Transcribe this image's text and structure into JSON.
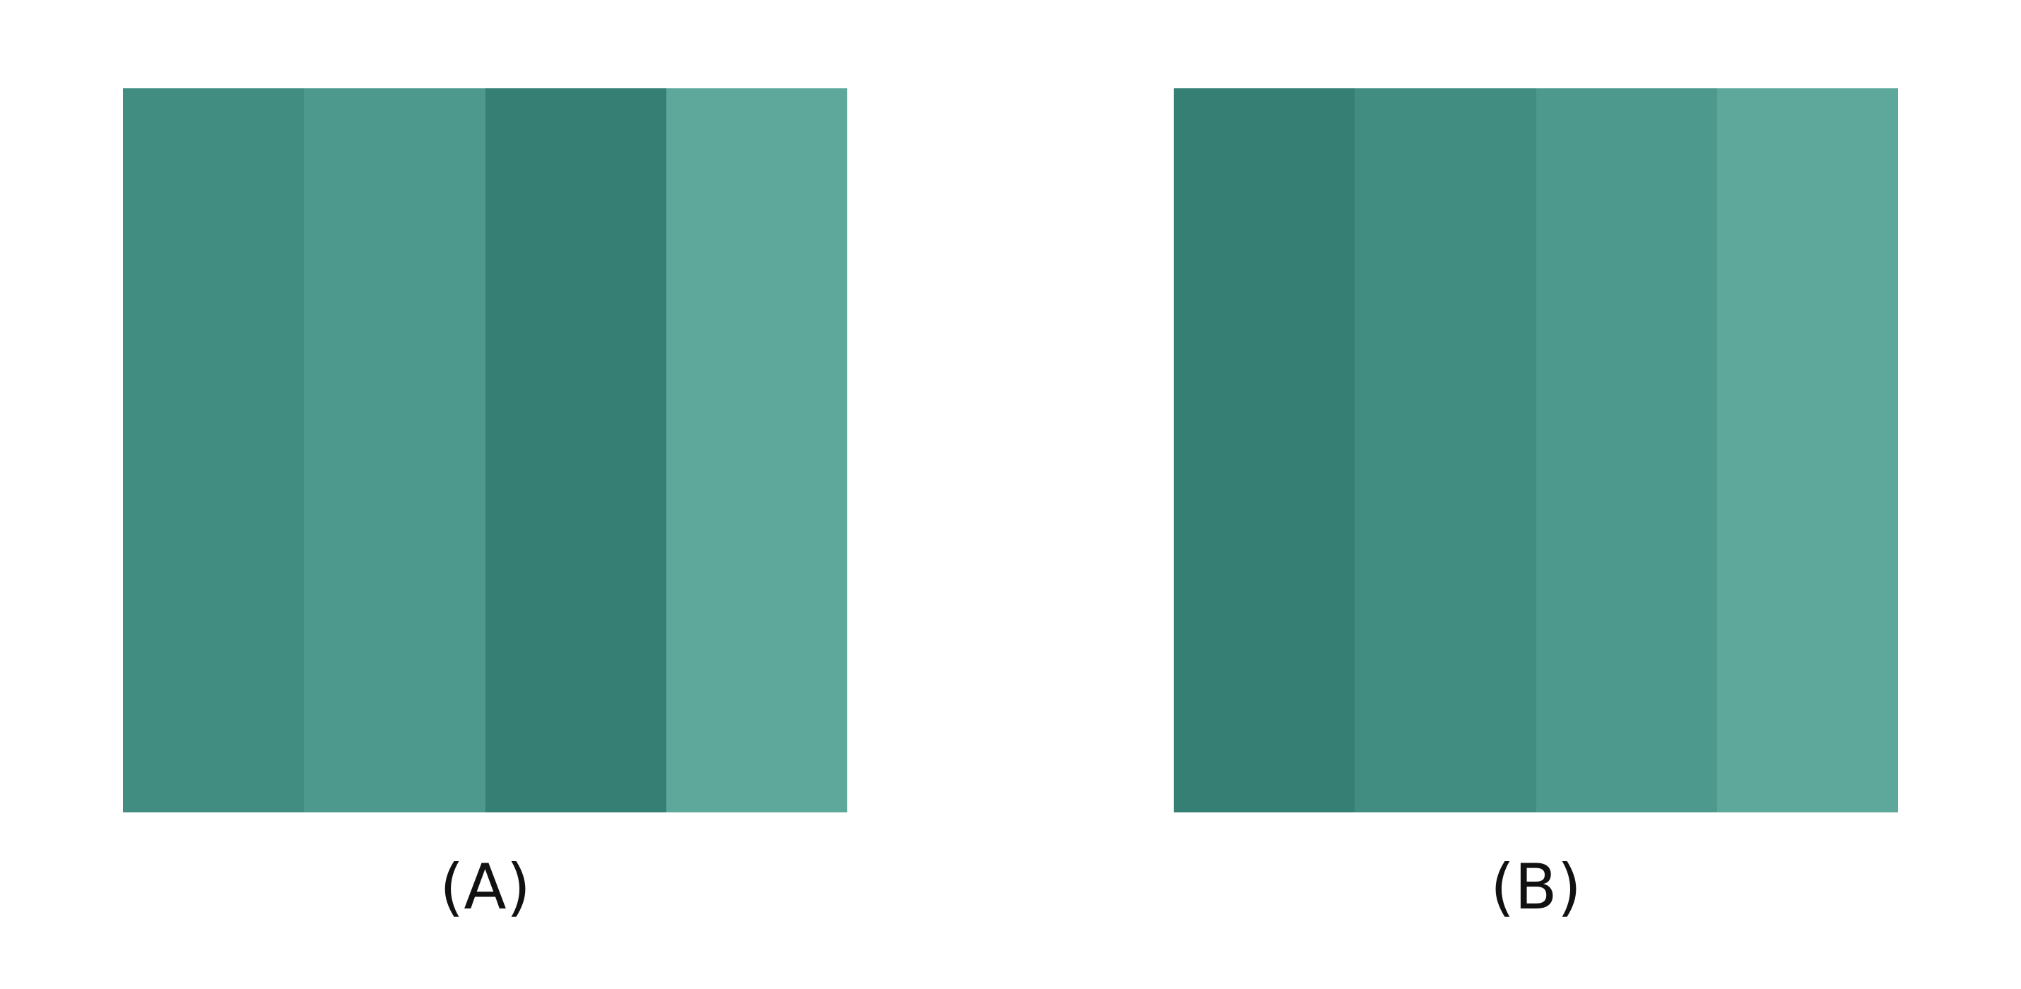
{
  "panels": [
    {
      "label": "(A)",
      "stripes": [
        "#418d81",
        "#4e998d",
        "#357f74",
        "#5da79b"
      ]
    },
    {
      "label": "(B)",
      "stripes": [
        "#357f74",
        "#418d81",
        "#4e998d",
        "#5da79b"
      ]
    }
  ]
}
